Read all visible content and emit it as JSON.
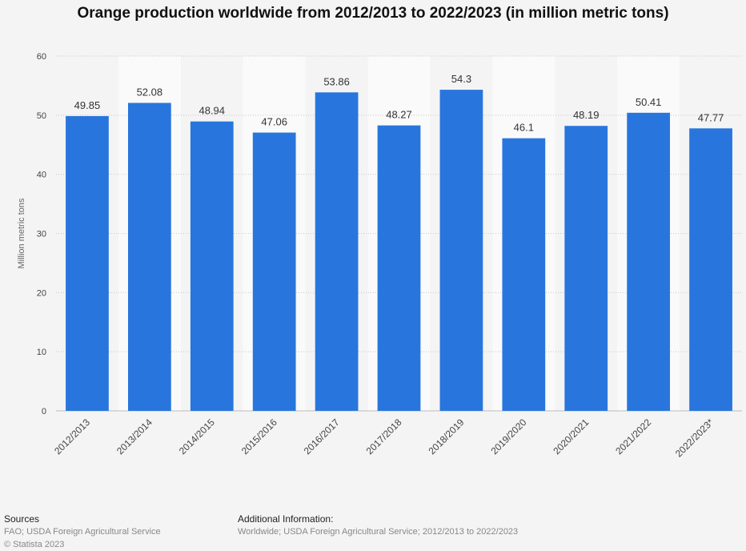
{
  "chart_data": {
    "type": "bar",
    "title": "Orange production worldwide from 2012/2013 to 2022/2023 (in million metric tons)",
    "ylabel": "Million metric tons",
    "ylim": [
      0,
      60
    ],
    "yticks": [
      0,
      10,
      20,
      30,
      40,
      50,
      60
    ],
    "categories": [
      "2012/2013",
      "2013/2014",
      "2014/2015",
      "2015/2016",
      "2016/2017",
      "2017/2018",
      "2018/2019",
      "2019/2020",
      "2020/2021",
      "2021/2022",
      "2022/2023*"
    ],
    "values": [
      49.85,
      52.08,
      48.94,
      47.06,
      53.86,
      48.27,
      54.3,
      46.1,
      48.19,
      50.41,
      47.77
    ],
    "data_labels": [
      "49.85",
      "52.08",
      "48.94",
      "47.06",
      "53.86",
      "48.27",
      "54.3",
      "46.1",
      "48.19",
      "50.41",
      "47.77"
    ],
    "bar_color": "#2876dd",
    "grid": true
  },
  "footer": {
    "sources_heading": "Sources",
    "sources_text": "FAO; USDA Foreign Agricultural Service",
    "copyright": "© Statista 2023",
    "additional_heading": "Additional Information:",
    "additional_text": "Worldwide; USDA Foreign Agricultural Service; 2012/2013 to 2022/2023"
  }
}
